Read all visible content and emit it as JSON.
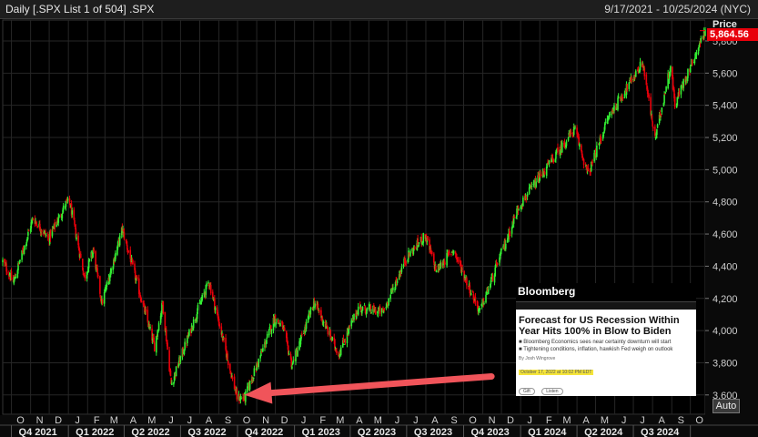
{
  "header": {
    "title": "Daily [.SPX List 1 of 504] .SPX",
    "date_range": "9/17/2021 - 10/25/2024 (NYC)"
  },
  "axis": {
    "price_title": "Price",
    "last_price": "5,864.56",
    "auto_label": "Auto"
  },
  "colors": {
    "up": "#33ee33",
    "down": "#e8000b",
    "arrow": "#f0545a",
    "grid": "#262626"
  },
  "article": {
    "brand": "Bloomberg",
    "headline": "Forecast for US Recession Within Year Hits 100% in Blow to Biden",
    "bullets": [
      "Bloomberg Economics sees near certainty downturn will start",
      "Tightening conditions, inflation, hawkish Fed weigh on outlook"
    ],
    "byline": "By Josh Wingrove",
    "date": "October 17, 2022 at 10:02 PM EDT",
    "buttons": [
      "Gift",
      "Listen"
    ]
  },
  "chart_data": {
    "type": "candlestick",
    "title": "",
    "xlabel": "",
    "ylabel": "Price",
    "ylim": [
      3480,
      5930
    ],
    "y_ticks": [
      3600,
      3800,
      4000,
      4200,
      4400,
      4600,
      4800,
      5000,
      5200,
      5400,
      5600,
      5800
    ],
    "y_tick_labels": [
      "3,600",
      "3,800",
      "4,000",
      "4,200",
      "4,400",
      "4,600",
      "4,800",
      "5,000",
      "5,200",
      "5,400",
      "5,600",
      "5,800"
    ],
    "x_range": [
      "2021-09-17",
      "2024-10-25"
    ],
    "month_ticks": [
      "O",
      "N",
      "D",
      "J",
      "F",
      "M",
      "A",
      "M",
      "J",
      "J",
      "A",
      "S",
      "O",
      "N",
      "D",
      "J",
      "F",
      "M",
      "A",
      "M",
      "J",
      "J",
      "A",
      "S",
      "O",
      "N",
      "D",
      "J",
      "F",
      "M",
      "A",
      "M",
      "J",
      "J",
      "A",
      "S",
      "O"
    ],
    "quarter_labels": [
      "Q4 2021",
      "Q1 2022",
      "Q2 2022",
      "Q3 2022",
      "Q4 2022",
      "Q1 2023",
      "Q2 2023",
      "Q3 2023",
      "Q4 2023",
      "Q1 2024",
      "Q2 2024",
      "Q3 2024"
    ],
    "close_path": [
      [
        "2021-09-17",
        4430
      ],
      [
        "2021-10-04",
        4300
      ],
      [
        "2021-11-05",
        4700
      ],
      [
        "2021-11-30",
        4570
      ],
      [
        "2021-12-28",
        4790
      ],
      [
        "2022-01-03",
        4796
      ],
      [
        "2022-01-27",
        4330
      ],
      [
        "2022-02-10",
        4500
      ],
      [
        "2022-02-24",
        4170
      ],
      [
        "2022-03-29",
        4630
      ],
      [
        "2022-05-02",
        4150
      ],
      [
        "2022-05-20",
        3900
      ],
      [
        "2022-06-02",
        4170
      ],
      [
        "2022-06-16",
        3666
      ],
      [
        "2022-07-29",
        4130
      ],
      [
        "2022-08-16",
        4305
      ],
      [
        "2022-09-30",
        3585
      ],
      [
        "2022-10-12",
        3577
      ],
      [
        "2022-11-30",
        4080
      ],
      [
        "2022-12-13",
        4019
      ],
      [
        "2022-12-28",
        3783
      ],
      [
        "2023-02-02",
        4179
      ],
      [
        "2023-03-13",
        3855
      ],
      [
        "2023-04-14",
        4140
      ],
      [
        "2023-05-24",
        4115
      ],
      [
        "2023-06-30",
        4450
      ],
      [
        "2023-07-31",
        4590
      ],
      [
        "2023-08-18",
        4370
      ],
      [
        "2023-09-14",
        4505
      ],
      [
        "2023-10-27",
        4117
      ],
      [
        "2023-12-29",
        4770
      ],
      [
        "2024-03-28",
        5254
      ],
      [
        "2024-04-19",
        4967
      ],
      [
        "2024-05-21",
        5321
      ],
      [
        "2024-07-16",
        5667
      ],
      [
        "2024-08-05",
        5186
      ],
      [
        "2024-08-30",
        5648
      ],
      [
        "2024-09-06",
        5408
      ],
      [
        "2024-10-25",
        5864
      ]
    ],
    "annotations": [
      {
        "type": "arrow",
        "from": [
          "2023-11-15",
          3715
        ],
        "to": [
          "2022-10-12",
          3600
        ]
      }
    ]
  }
}
